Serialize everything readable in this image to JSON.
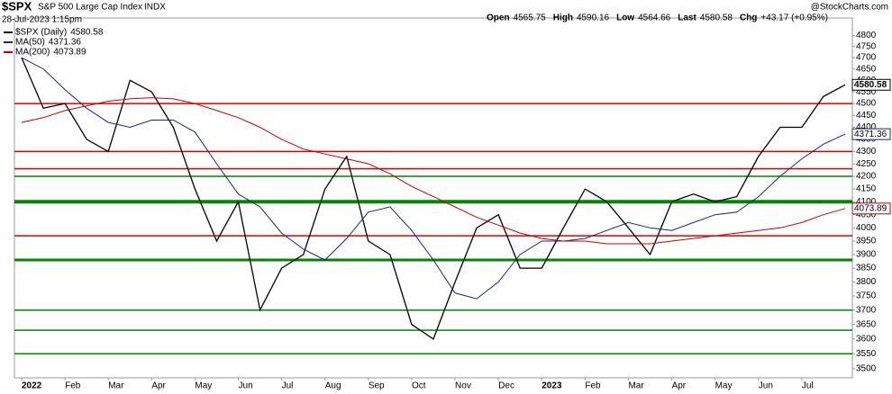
{
  "chart_data": {
    "type": "line",
    "title": "$SPX",
    "subtitle": "S&P 500 Large Cap Index",
    "exchange": "INDX",
    "date": "28-Jul-2023 1:15pm",
    "quote": [
      {
        "label": "Open",
        "value": "4565.75"
      },
      {
        "label": "High",
        "value": "4590.16"
      },
      {
        "label": "Low",
        "value": "4564.66"
      },
      {
        "label": "Last",
        "value": "4580.58"
      },
      {
        "label": "Chg",
        "value": "+43.17 (+0.95%)"
      }
    ],
    "credit": "@StockCharts.com",
    "categories": [
      "2022",
      null,
      "Feb",
      null,
      "Mar",
      null,
      "Apr",
      null,
      "May",
      null,
      "Jun",
      null,
      "Jul",
      null,
      "Aug",
      null,
      "Sep",
      null,
      "Oct",
      null,
      "Nov",
      null,
      "Dec",
      null,
      "2023",
      null,
      "Feb",
      null,
      "Mar",
      null,
      "Apr",
      null,
      "May",
      null,
      "Jun",
      null,
      "Jul",
      null,
      null
    ],
    "series": [
      {
        "name": "$SPX (Daily)",
        "color": "#000000",
        "values": [
          4700,
          4480,
          4500,
          4350,
          4300,
          4600,
          4550,
          4400,
          4150,
          3950,
          4100,
          3700,
          3850,
          3900,
          4150,
          4280,
          3950,
          3900,
          3650,
          3600,
          3800,
          4000,
          4050,
          3850,
          3850,
          4000,
          4150,
          4100,
          4000,
          3900,
          4100,
          4130,
          4100,
          4120,
          4280,
          4400,
          4400,
          4530,
          4580.58
        ]
      },
      {
        "name": "MA(50)",
        "color": "#1a237e",
        "values": [
          4700,
          4650,
          4560,
          4480,
          4420,
          4400,
          4430,
          4430,
          4380,
          4250,
          4130,
          4080,
          3980,
          3920,
          3880,
          3960,
          4060,
          4080,
          3990,
          3880,
          3760,
          3740,
          3800,
          3900,
          3950,
          3950,
          3960,
          3990,
          4020,
          4000,
          3990,
          4020,
          4050,
          4060,
          4120,
          4200,
          4270,
          4330,
          4371.36
        ]
      },
      {
        "name": "MA(200)",
        "color": "#cc0000",
        "values": [
          4420,
          4440,
          4470,
          4490,
          4510,
          4520,
          4525,
          4520,
          4500,
          4470,
          4440,
          4400,
          4350,
          4310,
          4290,
          4270,
          4250,
          4210,
          4160,
          4120,
          4080,
          4040,
          4010,
          3980,
          3960,
          3950,
          3950,
          3940,
          3940,
          3940,
          3950,
          3960,
          3970,
          3980,
          3990,
          4000,
          4020,
          4050,
          4073.89
        ]
      }
    ],
    "levels": [
      {
        "value": 4500,
        "color": "#dd0000",
        "width": 1.5
      },
      {
        "value": 4300,
        "color": "#dd0000",
        "width": 1.5
      },
      {
        "value": 4230,
        "color": "#dd0000",
        "width": 1.5
      },
      {
        "value": 4200,
        "color": "#008800",
        "width": 1.5
      },
      {
        "value": 4100,
        "color": "#008800",
        "width": 4
      },
      {
        "value": 3970,
        "color": "#dd0000",
        "width": 1.5
      },
      {
        "value": 3880,
        "color": "#008800",
        "width": 3
      },
      {
        "value": 3700,
        "color": "#008800",
        "width": 1.5
      },
      {
        "value": 3630,
        "color": "#008800",
        "width": 1.5
      },
      {
        "value": 3550,
        "color": "#008800",
        "width": 1.5
      }
    ],
    "ylim": [
      3470,
      4880
    ],
    "log_scale": true,
    "yticks": [
      3500,
      3550,
      3600,
      3650,
      3700,
      3750,
      3800,
      3850,
      3900,
      3950,
      4000,
      4050,
      4100,
      4150,
      4200,
      4250,
      4300,
      4350,
      4400,
      4450,
      4500,
      4550,
      4600,
      4650,
      4700,
      4750,
      4800
    ]
  }
}
